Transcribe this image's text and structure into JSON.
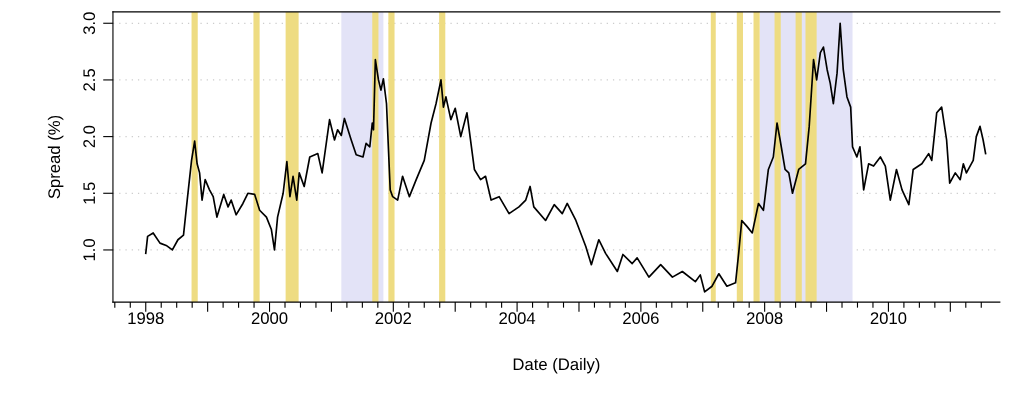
{
  "chart_data": {
    "type": "line",
    "xlabel": "Date (Daily)",
    "ylabel": "Spread (%)",
    "xlim": [
      1997.47,
      2011.8
    ],
    "ylim": [
      0.54,
      3.1
    ],
    "xticks": [
      {
        "value": 1997.5,
        "label": null
      },
      {
        "value": 1997.75,
        "label": null
      },
      {
        "value": 1998,
        "label": "1998"
      },
      {
        "value": 1998.25,
        "label": null
      },
      {
        "value": 1998.5,
        "label": null
      },
      {
        "value": 1998.75,
        "label": null
      },
      {
        "value": 1999,
        "label": null
      },
      {
        "value": 1999.25,
        "label": null
      },
      {
        "value": 1999.5,
        "label": null
      },
      {
        "value": 1999.75,
        "label": null
      },
      {
        "value": 2000,
        "label": "2000"
      },
      {
        "value": 2000.25,
        "label": null
      },
      {
        "value": 2000.5,
        "label": null
      },
      {
        "value": 2000.75,
        "label": null
      },
      {
        "value": 2001,
        "label": null
      },
      {
        "value": 2001.25,
        "label": null
      },
      {
        "value": 2001.5,
        "label": null
      },
      {
        "value": 2001.75,
        "label": null
      },
      {
        "value": 2002,
        "label": "2002"
      },
      {
        "value": 2002.25,
        "label": null
      },
      {
        "value": 2002.5,
        "label": null
      },
      {
        "value": 2002.75,
        "label": null
      },
      {
        "value": 2003,
        "label": null
      },
      {
        "value": 2003.25,
        "label": null
      },
      {
        "value": 2003.5,
        "label": null
      },
      {
        "value": 2003.75,
        "label": null
      },
      {
        "value": 2004,
        "label": "2004"
      },
      {
        "value": 2004.25,
        "label": null
      },
      {
        "value": 2004.5,
        "label": null
      },
      {
        "value": 2004.75,
        "label": null
      },
      {
        "value": 2005,
        "label": null
      },
      {
        "value": 2005.25,
        "label": null
      },
      {
        "value": 2005.5,
        "label": null
      },
      {
        "value": 2005.75,
        "label": null
      },
      {
        "value": 2006,
        "label": "2006"
      },
      {
        "value": 2006.25,
        "label": null
      },
      {
        "value": 2006.5,
        "label": null
      },
      {
        "value": 2006.75,
        "label": null
      },
      {
        "value": 2007,
        "label": null
      },
      {
        "value": 2007.25,
        "label": null
      },
      {
        "value": 2007.5,
        "label": null
      },
      {
        "value": 2007.75,
        "label": null
      },
      {
        "value": 2008,
        "label": "2008"
      },
      {
        "value": 2008.25,
        "label": null
      },
      {
        "value": 2008.5,
        "label": null
      },
      {
        "value": 2008.75,
        "label": null
      },
      {
        "value": 2009,
        "label": null
      },
      {
        "value": 2009.25,
        "label": null
      },
      {
        "value": 2009.5,
        "label": null
      },
      {
        "value": 2009.75,
        "label": null
      },
      {
        "value": 2010,
        "label": "2010"
      },
      {
        "value": 2010.25,
        "label": null
      },
      {
        "value": 2010.5,
        "label": null
      },
      {
        "value": 2010.75,
        "label": null
      },
      {
        "value": 2011,
        "label": null
      },
      {
        "value": 2011.25,
        "label": null
      },
      {
        "value": 2011.5,
        "label": null
      }
    ],
    "yticks": [
      {
        "value": 1,
        "label": "1.0"
      },
      {
        "value": 1.5,
        "label": "1.5"
      },
      {
        "value": 2,
        "label": "2.0"
      },
      {
        "value": 2.5,
        "label": "2.5"
      },
      {
        "value": 3,
        "label": "3.0"
      }
    ],
    "grid": "y",
    "legend": false,
    "bands": [
      {
        "axis": "x",
        "from": 2001.16,
        "to": 2001.84,
        "color": "#e3e3f7"
      },
      {
        "axis": "x",
        "from": 2007.92,
        "to": 2009.42,
        "color": "#e3e3f7"
      },
      {
        "axis": "x",
        "from": 1998.74,
        "to": 1998.84,
        "color": "#eedc82"
      },
      {
        "axis": "x",
        "from": 1999.74,
        "to": 1999.84,
        "color": "#eedc82"
      },
      {
        "axis": "x",
        "from": 2000.26,
        "to": 2000.47,
        "color": "#eedc82"
      },
      {
        "axis": "x",
        "from": 2001.66,
        "to": 2001.76,
        "color": "#eedc82"
      },
      {
        "axis": "x",
        "from": 2001.92,
        "to": 2002.02,
        "color": "#eedc82"
      },
      {
        "axis": "x",
        "from": 2002.74,
        "to": 2002.84,
        "color": "#eedc82"
      },
      {
        "axis": "x",
        "from": 2007.13,
        "to": 2007.21,
        "color": "#eedc82"
      },
      {
        "axis": "x",
        "from": 2007.55,
        "to": 2007.65,
        "color": "#eedc82"
      },
      {
        "axis": "x",
        "from": 2007.82,
        "to": 2007.92,
        "color": "#eedc82"
      },
      {
        "axis": "x",
        "from": 2008.16,
        "to": 2008.26,
        "color": "#eedc82"
      },
      {
        "axis": "x",
        "from": 2008.5,
        "to": 2008.6,
        "color": "#eedc82"
      },
      {
        "axis": "x",
        "from": 2008.66,
        "to": 2008.84,
        "color": "#eedc82"
      }
    ],
    "series": [
      {
        "color": "#000000",
        "x": [
          1998.0,
          1998.03,
          1998.12,
          1998.23,
          1998.33,
          1998.43,
          1998.52,
          1998.61,
          1998.67,
          1998.74,
          1998.79,
          1998.83,
          1998.87,
          1998.91,
          1998.96,
          1999.03,
          1999.09,
          1999.15,
          1999.26,
          1999.33,
          1999.38,
          1999.46,
          1999.57,
          1999.65,
          1999.76,
          1999.84,
          1999.95,
          2000.03,
          2000.08,
          2000.13,
          2000.22,
          2000.28,
          2000.33,
          2000.38,
          2000.44,
          2000.48,
          2000.56,
          2000.65,
          2000.78,
          2000.85,
          2000.97,
          2001.05,
          2001.1,
          2001.16,
          2001.21,
          2001.32,
          2001.4,
          2001.51,
          2001.56,
          2001.62,
          2001.66,
          2001.68,
          2001.71,
          2001.76,
          2001.8,
          2001.84,
          2001.89,
          2001.95,
          2001.99,
          2002.07,
          2002.15,
          2002.26,
          2002.37,
          2002.5,
          2002.61,
          2002.69,
          2002.77,
          2002.81,
          2002.85,
          2002.93,
          2003.0,
          2003.09,
          2003.19,
          2003.31,
          2003.41,
          2003.49,
          2003.58,
          2003.71,
          2003.87,
          2004.03,
          2004.14,
          2004.21,
          2004.27,
          2004.46,
          2004.6,
          2004.73,
          2004.81,
          2004.95,
          2005.11,
          2005.2,
          2005.32,
          2005.43,
          2005.62,
          2005.71,
          2005.86,
          2005.94,
          2006.13,
          2006.32,
          2006.51,
          2006.67,
          2006.88,
          2006.96,
          2007.03,
          2007.15,
          2007.26,
          2007.39,
          2007.53,
          2007.58,
          2007.63,
          2007.71,
          2007.8,
          2007.9,
          2007.98,
          2008.06,
          2008.14,
          2008.2,
          2008.25,
          2008.33,
          2008.39,
          2008.45,
          2008.55,
          2008.66,
          2008.72,
          2008.79,
          2008.84,
          2008.9,
          2008.95,
          2009.01,
          2009.06,
          2009.11,
          2009.17,
          2009.22,
          2009.27,
          2009.33,
          2009.39,
          2009.42,
          2009.49,
          2009.54,
          2009.6,
          2009.68,
          2009.76,
          2009.87,
          2009.95,
          2010.03,
          2010.13,
          2010.22,
          2010.33,
          2010.4,
          2010.54,
          2010.65,
          2010.7,
          2010.78,
          2010.86,
          2010.94,
          2010.99,
          2011.08,
          2011.16,
          2011.21,
          2011.26,
          2011.37,
          2011.42,
          2011.48,
          2011.53,
          2011.57
        ],
        "values": [
          0.97,
          1.12,
          1.15,
          1.06,
          1.04,
          1.0,
          1.09,
          1.13,
          1.44,
          1.79,
          1.96,
          1.76,
          1.68,
          1.44,
          1.62,
          1.53,
          1.47,
          1.29,
          1.49,
          1.38,
          1.44,
          1.31,
          1.41,
          1.5,
          1.49,
          1.35,
          1.29,
          1.18,
          1.0,
          1.29,
          1.5,
          1.78,
          1.47,
          1.65,
          1.44,
          1.68,
          1.56,
          1.82,
          1.85,
          1.68,
          2.15,
          1.97,
          2.06,
          2.01,
          2.16,
          1.97,
          1.84,
          1.82,
          1.94,
          1.91,
          2.12,
          2.06,
          2.68,
          2.5,
          2.41,
          2.51,
          2.29,
          1.53,
          1.47,
          1.44,
          1.65,
          1.47,
          1.62,
          1.79,
          2.12,
          2.29,
          2.5,
          2.26,
          2.35,
          2.15,
          2.25,
          2.0,
          2.21,
          1.71,
          1.62,
          1.65,
          1.44,
          1.47,
          1.32,
          1.38,
          1.44,
          1.56,
          1.38,
          1.26,
          1.4,
          1.32,
          1.41,
          1.26,
          1.03,
          0.87,
          1.09,
          0.97,
          0.81,
          0.96,
          0.88,
          0.93,
          0.76,
          0.87,
          0.76,
          0.81,
          0.72,
          0.78,
          0.63,
          0.68,
          0.79,
          0.68,
          0.71,
          0.97,
          1.26,
          1.21,
          1.15,
          1.41,
          1.35,
          1.71,
          1.82,
          2.12,
          1.97,
          1.71,
          1.68,
          1.5,
          1.71,
          1.76,
          2.09,
          2.68,
          2.5,
          2.74,
          2.79,
          2.59,
          2.47,
          2.29,
          2.56,
          3.0,
          2.59,
          2.35,
          2.26,
          1.91,
          1.82,
          1.91,
          1.53,
          1.76,
          1.74,
          1.82,
          1.74,
          1.44,
          1.71,
          1.53,
          1.4,
          1.71,
          1.76,
          1.85,
          1.79,
          2.21,
          2.26,
          1.97,
          1.59,
          1.68,
          1.62,
          1.76,
          1.68,
          1.79,
          2.0,
          2.09,
          1.97,
          1.85
        ]
      }
    ]
  }
}
